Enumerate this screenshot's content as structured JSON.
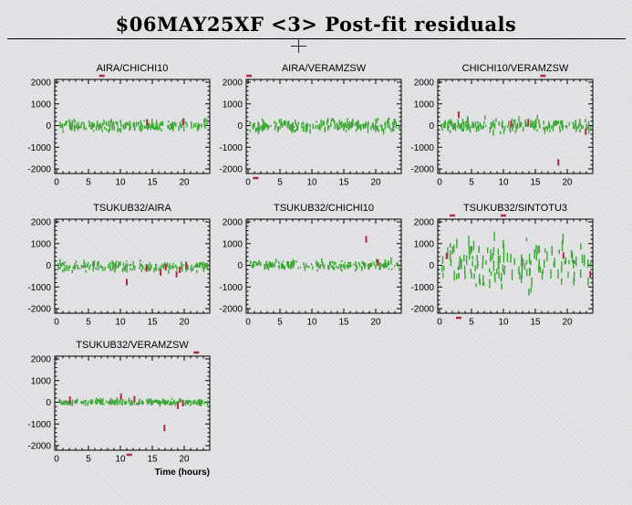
{
  "header": {
    "title": "$06MAY25XF <3> Post-fit residuals"
  },
  "cursor": {
    "shape": "crosshair"
  },
  "colors": {
    "background": "#d9dad2",
    "frame": "#000000",
    "good_point": "#3aa733",
    "flagged_point": "#b22a40"
  },
  "chart_data": {
    "type": "scatter",
    "suptitle": "$06MAY25XF <3> Post-fit residuals",
    "xlabel": "Time (hours)",
    "ylabel": "",
    "xlim": [
      0,
      24
    ],
    "ylim": [
      -2200,
      2200
    ],
    "xticks": [
      0,
      5,
      10,
      15,
      20
    ],
    "yticks": [
      2000,
      1000,
      0,
      -1000,
      -2000
    ],
    "x_minor_step": 1,
    "y_minor_step": 200,
    "grid": false,
    "legend": "none",
    "point_style": "vertical error-bar strokes",
    "panels": [
      {
        "title": "AIRA/CHICHI10",
        "good_points": {
          "n": 210,
          "y_mean": 0,
          "y_sd": 115,
          "errbar": 85,
          "seed": 101
        },
        "flagged_points": [
          [
            14.2,
            150
          ],
          [
            19.9,
            160
          ],
          [
            7.1,
            2190
          ]
        ]
      },
      {
        "title": "AIRA/VERAMZSW",
        "good_points": {
          "n": 215,
          "y_mean": 0,
          "y_sd": 125,
          "errbar": 95,
          "seed": 102
        },
        "flagged_points": [
          [
            0.15,
            2190
          ],
          [
            1.2,
            -2260
          ]
        ]
      },
      {
        "title": "CHICHI10/VERAMZSW",
        "good_points": {
          "n": 195,
          "y_mean": 0,
          "y_sd": 135,
          "errbar": 100,
          "seed": 103
        },
        "flagged_points": [
          [
            3.0,
            500
          ],
          [
            11.2,
            80
          ],
          [
            13.9,
            160
          ],
          [
            18.6,
            -1700
          ],
          [
            22.9,
            -280
          ],
          [
            16.2,
            2190
          ]
        ]
      },
      {
        "title": "TSUKUB32/AIRA",
        "good_points": {
          "n": 195,
          "y_mean": -40,
          "y_sd": 110,
          "errbar": 75,
          "seed": 104
        },
        "flagged_points": [
          [
            11.0,
            -780
          ],
          [
            14.1,
            -150
          ],
          [
            16.3,
            -330
          ],
          [
            17.1,
            -90
          ],
          [
            18.8,
            -410
          ],
          [
            19.3,
            -210
          ],
          [
            20.3,
            -20
          ]
        ]
      },
      {
        "title": "TSUKUB32/CHICHI10",
        "good_points": {
          "n": 205,
          "y_mean": 0,
          "y_sd": 100,
          "errbar": 75,
          "seed": 105
        },
        "flagged_points": [
          [
            18.5,
            1200
          ],
          [
            20.3,
            130
          ]
        ]
      },
      {
        "title": "TSUKUB32/SINTOTU3",
        "good_points": {
          "n": 150,
          "y_mean": 0,
          "y_sd": 560,
          "errbar": 180,
          "seed": 106
        },
        "flagged_points": [
          [
            1.1,
            430
          ],
          [
            19.4,
            450
          ],
          [
            23.6,
            -420
          ],
          [
            2.0,
            2190
          ],
          [
            10.0,
            2190
          ],
          [
            3.0,
            -2260
          ]
        ]
      },
      {
        "title": "TSUKUB32/VERAMZSW",
        "good_points": {
          "n": 225,
          "y_mean": 0,
          "y_sd": 60,
          "errbar": 65,
          "seed": 107
        },
        "flagged_points": [
          [
            2.1,
            120
          ],
          [
            10.1,
            260
          ],
          [
            12.2,
            140
          ],
          [
            16.9,
            -1190
          ],
          [
            19.0,
            -160
          ],
          [
            19.8,
            -40
          ],
          [
            21.9,
            2190
          ],
          [
            11.4,
            -2260
          ]
        ]
      }
    ]
  }
}
